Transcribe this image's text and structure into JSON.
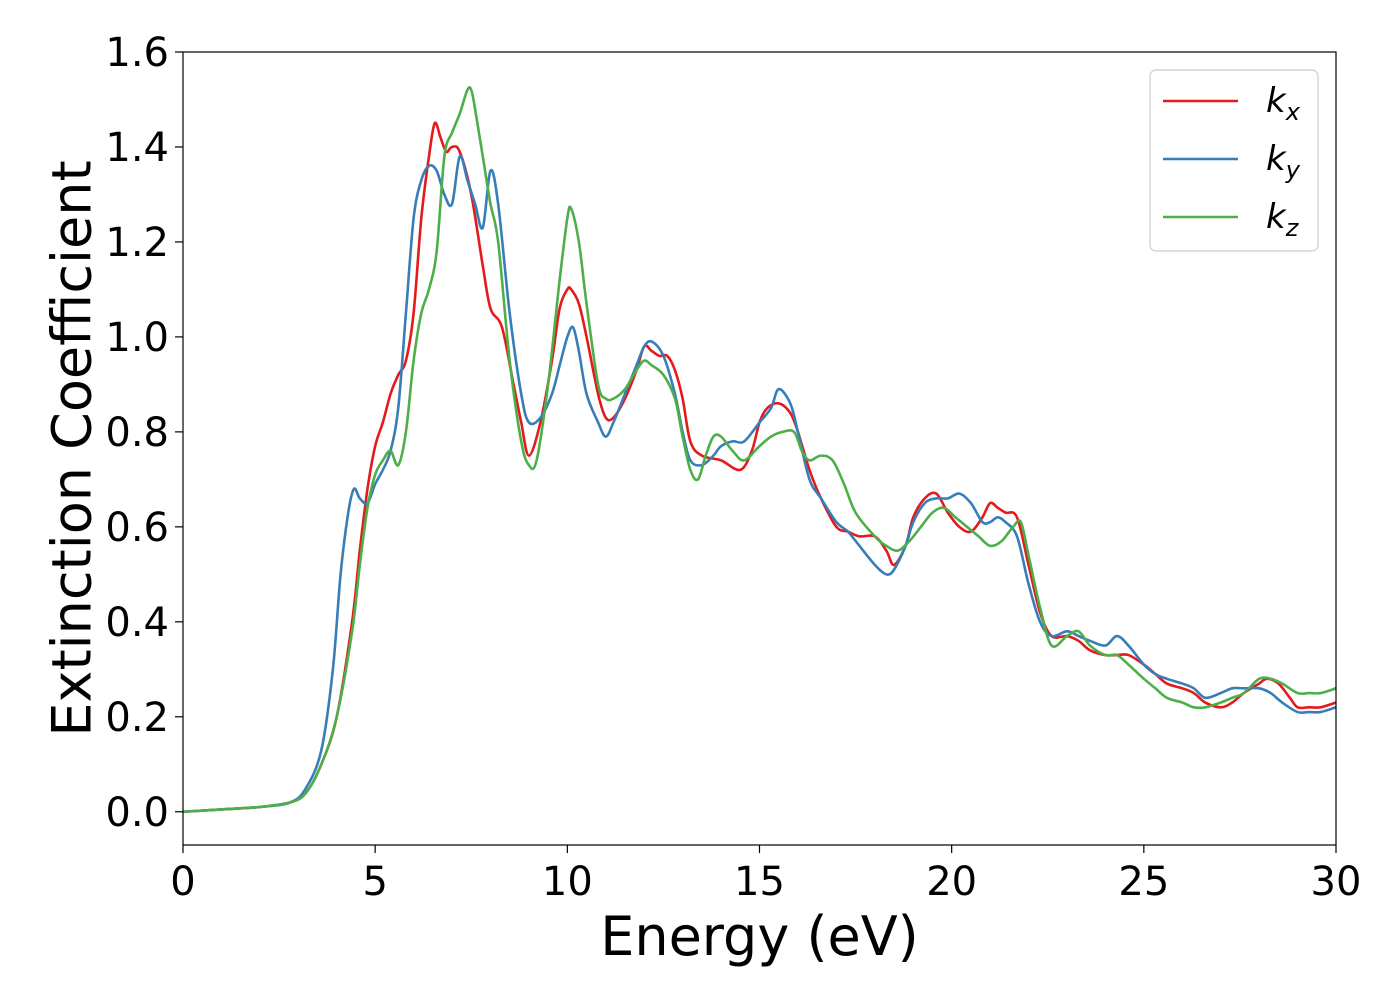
{
  "chart_data": {
    "type": "line",
    "title": "",
    "xlabel": "Energy (eV)",
    "ylabel": "Extinction Coefficient",
    "xlim": [
      0,
      30
    ],
    "ylim": [
      -0.07,
      1.6
    ],
    "xticks": [
      "0",
      "5",
      "10",
      "15",
      "20",
      "25",
      "30"
    ],
    "yticks": [
      "0.0",
      "0.2",
      "0.4",
      "0.6",
      "0.8",
      "1.0",
      "1.2",
      "1.4",
      "1.6"
    ],
    "grid": false,
    "legend_position": "top-right",
    "series": [
      {
        "name": "k_x",
        "legend_base": "k",
        "legend_sub": "x",
        "color": "#e41a1c",
        "x": [
          0,
          1,
          2,
          2.8,
          3.2,
          3.6,
          4.0,
          4.4,
          4.6,
          4.8,
          5.0,
          5.2,
          5.4,
          5.6,
          5.8,
          6.0,
          6.2,
          6.4,
          6.55,
          6.7,
          6.85,
          7.0,
          7.2,
          7.5,
          7.8,
          8.0,
          8.3,
          8.6,
          8.8,
          9.0,
          9.3,
          9.6,
          9.8,
          10.0,
          10.1,
          10.3,
          10.5,
          10.8,
          11.0,
          11.2,
          11.5,
          11.8,
          12.0,
          12.2,
          12.4,
          12.6,
          12.8,
          13.0,
          13.2,
          13.5,
          14.0,
          14.5,
          14.8,
          15.0,
          15.2,
          15.5,
          15.8,
          16.0,
          16.3,
          16.6,
          17.0,
          17.3,
          17.6,
          18.0,
          18.3,
          18.5,
          18.8,
          19.0,
          19.3,
          19.6,
          19.9,
          20.2,
          20.5,
          20.8,
          21.0,
          21.2,
          21.4,
          21.7,
          22.0,
          22.3,
          22.6,
          23.0,
          23.3,
          23.6,
          24.0,
          24.3,
          24.6,
          25.0,
          25.3,
          25.6,
          26.0,
          26.3,
          26.6,
          27.0,
          27.3,
          27.6,
          28.0,
          28.2,
          28.5,
          28.8,
          29.0,
          29.3,
          29.6,
          30.0
        ],
        "y": [
          0.0,
          0.005,
          0.01,
          0.02,
          0.04,
          0.1,
          0.2,
          0.4,
          0.55,
          0.68,
          0.77,
          0.82,
          0.88,
          0.92,
          0.95,
          1.05,
          1.25,
          1.38,
          1.45,
          1.42,
          1.39,
          1.4,
          1.39,
          1.3,
          1.15,
          1.06,
          1.02,
          0.9,
          0.82,
          0.75,
          0.82,
          0.95,
          1.06,
          1.1,
          1.1,
          1.07,
          1.0,
          0.88,
          0.83,
          0.83,
          0.87,
          0.93,
          0.98,
          0.97,
          0.96,
          0.96,
          0.93,
          0.87,
          0.78,
          0.75,
          0.74,
          0.72,
          0.76,
          0.82,
          0.85,
          0.86,
          0.84,
          0.8,
          0.72,
          0.66,
          0.6,
          0.59,
          0.58,
          0.58,
          0.55,
          0.52,
          0.56,
          0.62,
          0.66,
          0.67,
          0.63,
          0.6,
          0.59,
          0.62,
          0.65,
          0.64,
          0.63,
          0.62,
          0.52,
          0.42,
          0.37,
          0.37,
          0.36,
          0.34,
          0.33,
          0.33,
          0.33,
          0.31,
          0.29,
          0.27,
          0.26,
          0.25,
          0.23,
          0.22,
          0.23,
          0.25,
          0.27,
          0.28,
          0.27,
          0.24,
          0.22,
          0.22,
          0.22,
          0.23
        ]
      },
      {
        "name": "k_y",
        "legend_base": "k",
        "legend_sub": "y",
        "color": "#377eb8",
        "x": [
          0,
          1,
          2,
          2.8,
          3.2,
          3.6,
          3.9,
          4.1,
          4.3,
          4.45,
          4.6,
          4.8,
          5.0,
          5.2,
          5.4,
          5.6,
          5.8,
          6.0,
          6.2,
          6.4,
          6.6,
          6.8,
          7.0,
          7.2,
          7.4,
          7.6,
          7.8,
          8.0,
          8.2,
          8.5,
          8.8,
          9.0,
          9.3,
          9.6,
          9.8,
          10.0,
          10.15,
          10.3,
          10.5,
          10.8,
          11.0,
          11.2,
          11.5,
          11.8,
          12.0,
          12.2,
          12.5,
          12.8,
          13.0,
          13.2,
          13.5,
          13.8,
          14.0,
          14.3,
          14.6,
          15.0,
          15.3,
          15.5,
          15.8,
          16.0,
          16.3,
          16.6,
          17.0,
          17.3,
          17.6,
          18.0,
          18.3,
          18.5,
          18.8,
          19.0,
          19.3,
          19.6,
          19.9,
          20.2,
          20.5,
          20.8,
          21.0,
          21.2,
          21.4,
          21.7,
          22.0,
          22.3,
          22.6,
          23.0,
          23.3,
          23.6,
          24.0,
          24.3,
          24.6,
          25.0,
          25.3,
          25.6,
          26.0,
          26.3,
          26.6,
          27.0,
          27.3,
          27.6,
          28.0,
          28.3,
          28.6,
          29.0,
          29.3,
          29.6,
          30.0
        ],
        "y": [
          0.0,
          0.005,
          0.01,
          0.02,
          0.05,
          0.13,
          0.3,
          0.5,
          0.63,
          0.68,
          0.66,
          0.65,
          0.69,
          0.72,
          0.76,
          0.85,
          1.05,
          1.25,
          1.33,
          1.36,
          1.35,
          1.3,
          1.28,
          1.38,
          1.33,
          1.28,
          1.23,
          1.35,
          1.28,
          1.05,
          0.88,
          0.82,
          0.83,
          0.88,
          0.94,
          1.0,
          1.02,
          0.97,
          0.88,
          0.82,
          0.79,
          0.82,
          0.88,
          0.94,
          0.98,
          0.99,
          0.96,
          0.88,
          0.8,
          0.74,
          0.73,
          0.75,
          0.77,
          0.78,
          0.78,
          0.82,
          0.85,
          0.89,
          0.86,
          0.8,
          0.7,
          0.66,
          0.61,
          0.59,
          0.56,
          0.52,
          0.5,
          0.51,
          0.56,
          0.61,
          0.65,
          0.66,
          0.66,
          0.67,
          0.65,
          0.61,
          0.61,
          0.62,
          0.61,
          0.58,
          0.48,
          0.4,
          0.37,
          0.38,
          0.37,
          0.36,
          0.35,
          0.37,
          0.35,
          0.31,
          0.29,
          0.28,
          0.27,
          0.26,
          0.24,
          0.25,
          0.26,
          0.26,
          0.26,
          0.25,
          0.23,
          0.21,
          0.21,
          0.21,
          0.22
        ]
      },
      {
        "name": "k_z",
        "legend_base": "k",
        "legend_sub": "z",
        "color": "#4daf4a",
        "x": [
          0,
          1,
          2,
          2.8,
          3.2,
          3.6,
          4.0,
          4.4,
          4.6,
          4.8,
          5.0,
          5.2,
          5.4,
          5.6,
          5.8,
          6.0,
          6.2,
          6.4,
          6.6,
          6.8,
          7.0,
          7.2,
          7.4,
          7.5,
          7.6,
          7.8,
          8.0,
          8.2,
          8.5,
          8.8,
          9.0,
          9.2,
          9.5,
          9.8,
          10.0,
          10.1,
          10.3,
          10.5,
          10.8,
          11.0,
          11.2,
          11.5,
          11.8,
          12.0,
          12.2,
          12.5,
          12.8,
          13.0,
          13.2,
          13.4,
          13.6,
          13.8,
          14.0,
          14.3,
          14.6,
          15.0,
          15.3,
          15.6,
          15.9,
          16.1,
          16.3,
          16.6,
          16.9,
          17.2,
          17.5,
          18.0,
          18.3,
          18.6,
          18.9,
          19.2,
          19.5,
          19.8,
          20.1,
          20.4,
          20.7,
          21.0,
          21.3,
          21.6,
          21.8,
          22.0,
          22.3,
          22.6,
          23.0,
          23.3,
          23.6,
          24.0,
          24.3,
          24.6,
          25.0,
          25.3,
          25.6,
          26.0,
          26.3,
          26.6,
          27.0,
          27.3,
          27.6,
          28.0,
          28.3,
          28.6,
          29.0,
          29.3,
          29.6,
          30.0
        ],
        "y": [
          0.0,
          0.005,
          0.01,
          0.02,
          0.04,
          0.1,
          0.2,
          0.38,
          0.52,
          0.64,
          0.71,
          0.74,
          0.76,
          0.73,
          0.8,
          0.95,
          1.05,
          1.1,
          1.18,
          1.38,
          1.43,
          1.47,
          1.52,
          1.52,
          1.48,
          1.38,
          1.28,
          1.2,
          0.95,
          0.78,
          0.73,
          0.74,
          0.9,
          1.12,
          1.25,
          1.27,
          1.2,
          1.07,
          0.9,
          0.87,
          0.87,
          0.89,
          0.93,
          0.95,
          0.94,
          0.92,
          0.87,
          0.79,
          0.72,
          0.7,
          0.75,
          0.79,
          0.79,
          0.76,
          0.74,
          0.77,
          0.79,
          0.8,
          0.8,
          0.76,
          0.74,
          0.75,
          0.74,
          0.69,
          0.63,
          0.58,
          0.56,
          0.55,
          0.57,
          0.6,
          0.63,
          0.64,
          0.62,
          0.6,
          0.58,
          0.56,
          0.57,
          0.6,
          0.61,
          0.54,
          0.43,
          0.35,
          0.37,
          0.38,
          0.35,
          0.33,
          0.33,
          0.31,
          0.28,
          0.26,
          0.24,
          0.23,
          0.22,
          0.22,
          0.23,
          0.24,
          0.25,
          0.28,
          0.28,
          0.27,
          0.25,
          0.25,
          0.25,
          0.26
        ]
      }
    ]
  }
}
